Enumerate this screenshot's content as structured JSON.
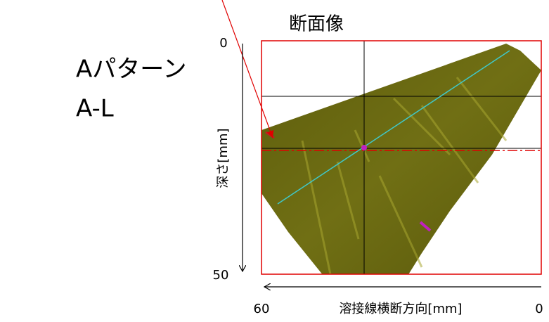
{
  "title": "断面像",
  "annotation": {
    "line1": "Aパターン",
    "line2": "A-L"
  },
  "depth_axis": {
    "label": "深さ[mm]",
    "top": "0",
    "bottom": "50"
  },
  "cross_axis": {
    "label": "溶接線横断方向[mm]",
    "left": "60",
    "right": "0"
  }
}
